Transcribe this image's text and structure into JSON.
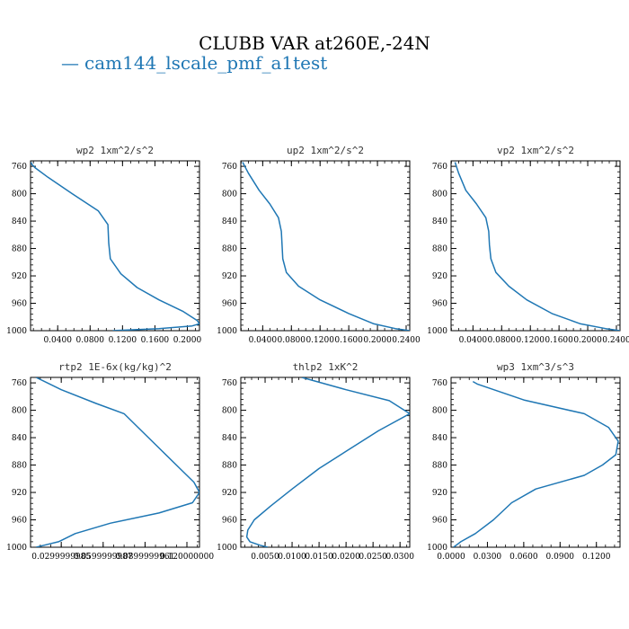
{
  "title": "CLUBB VAR at260E,-24N",
  "legend": {
    "dash": "—",
    "label": "cam144_lscale_pmf_a1test",
    "color": "#1f77b4"
  },
  "chart_data": [
    {
      "type": "line",
      "name": "wp2",
      "title": "wp2   1xm^2/s^2",
      "xlim": [
        0.0065,
        0.215
      ],
      "ylim": [
        1000,
        752
      ],
      "y_inverted": true,
      "xticks": [
        "0.0400",
        "0.0800",
        "0.1200",
        "0.1600",
        "0.2000"
      ],
      "xtick_values": [
        0.04,
        0.08,
        0.12,
        0.16,
        0.2
      ],
      "yticks": [
        "760",
        "800",
        "840",
        "880",
        "920",
        "960",
        "1000"
      ],
      "ytick_values": [
        760,
        800,
        840,
        880,
        920,
        960,
        1000
      ],
      "series": [
        {
          "color": "#1f77b4",
          "x": [
            0.007,
            0.008,
            0.012,
            0.028,
            0.058,
            0.09,
            0.102,
            0.103,
            0.105,
            0.118,
            0.138,
            0.165,
            0.195,
            0.212,
            0.215,
            0.206,
            0.165,
            0.108
          ],
          "y": [
            754,
            757,
            762,
            776,
            800,
            825,
            845,
            872,
            895,
            917,
            937,
            955,
            972,
            985,
            990,
            993,
            997,
            1000
          ]
        }
      ]
    },
    {
      "type": "line",
      "name": "up2",
      "title": "up2   1xm^2/s^2",
      "xlim": [
        0.0095,
        0.245
      ],
      "ylim": [
        1000,
        752
      ],
      "y_inverted": true,
      "xticks": [
        "0.0400",
        "0.0800",
        "0.1200",
        "0.1600",
        "0.2000",
        "0.2400"
      ],
      "xtick_values": [
        0.04,
        0.08,
        0.12,
        0.16,
        0.2,
        0.24
      ],
      "yticks": [
        "760",
        "800",
        "840",
        "880",
        "920",
        "960",
        "1000"
      ],
      "ytick_values": [
        760,
        800,
        840,
        880,
        920,
        960,
        1000
      ],
      "series": [
        {
          "color": "#1f77b4",
          "x": [
            0.012,
            0.02,
            0.035,
            0.05,
            0.062,
            0.066,
            0.067,
            0.068,
            0.073,
            0.09,
            0.12,
            0.16,
            0.195,
            0.225,
            0.245
          ],
          "y": [
            754,
            770,
            795,
            815,
            835,
            855,
            875,
            895,
            915,
            935,
            955,
            975,
            990,
            997,
            1000
          ]
        }
      ]
    },
    {
      "type": "line",
      "name": "vp2",
      "title": "vp2   1xm^2/s^2",
      "xlim": [
        0.0095,
        0.245
      ],
      "ylim": [
        1000,
        752
      ],
      "y_inverted": true,
      "xticks": [
        "0.0400",
        "0.0800",
        "0.1200",
        "0.1600",
        "0.2000",
        "0.2400"
      ],
      "xtick_values": [
        0.04,
        0.08,
        0.12,
        0.16,
        0.2,
        0.24
      ],
      "yticks": [
        "760",
        "800",
        "840",
        "880",
        "920",
        "960",
        "1000"
      ],
      "ytick_values": [
        760,
        800,
        840,
        880,
        920,
        960,
        1000
      ],
      "series": [
        {
          "color": "#1f77b4",
          "x": [
            0.015,
            0.02,
            0.03,
            0.045,
            0.058,
            0.062,
            0.063,
            0.065,
            0.072,
            0.09,
            0.115,
            0.15,
            0.19,
            0.225,
            0.245
          ],
          "y": [
            754,
            770,
            795,
            815,
            835,
            855,
            875,
            895,
            915,
            935,
            955,
            975,
            990,
            997,
            1000
          ]
        }
      ]
    },
    {
      "type": "line",
      "name": "rtp2",
      "title": "rtp2   1E-6x(kg/kg)^2",
      "xlim": [
        0.008,
        0.129
      ],
      "ylim": [
        1000,
        752
      ],
      "y_inverted": true,
      "xticks": [
        "0.0299999985",
        "0.0599999987",
        "0.0899999961",
        "0.120000000"
      ],
      "xtick_values": [
        0.03,
        0.06,
        0.09,
        0.12
      ],
      "yticks": [
        "760",
        "800",
        "840",
        "880",
        "920",
        "960",
        "1000"
      ],
      "ytick_values": [
        760,
        800,
        840,
        880,
        920,
        960,
        1000
      ],
      "series": [
        {
          "color": "#1f77b4",
          "x": [
            0.012,
            0.03,
            0.055,
            0.075,
            0.085,
            0.1,
            0.115,
            0.125,
            0.129,
            0.124,
            0.1,
            0.065,
            0.04,
            0.03,
            0.028,
            0.018,
            0.012
          ],
          "y": [
            752,
            770,
            790,
            805,
            825,
            855,
            885,
            905,
            920,
            935,
            950,
            965,
            980,
            990,
            992,
            997,
            1000
          ]
        }
      ]
    },
    {
      "type": "line",
      "name": "thlp2",
      "title": "thlp2   1xK^2",
      "xlim": [
        0.0005,
        0.0318
      ],
      "ylim": [
        1000,
        752
      ],
      "y_inverted": true,
      "xticks": [
        "0.0050",
        "0.0100",
        "0.0150",
        "0.0200",
        "0.0250",
        "0.0300"
      ],
      "xtick_values": [
        0.005,
        0.01,
        0.015,
        0.02,
        0.025,
        0.03
      ],
      "yticks": [
        "760",
        "800",
        "840",
        "880",
        "920",
        "960",
        "1000"
      ],
      "ytick_values": [
        760,
        800,
        840,
        880,
        920,
        960,
        1000
      ],
      "series": [
        {
          "color": "#1f77b4",
          "x": [
            0.0118,
            0.02,
            0.028,
            0.0318,
            0.026,
            0.02,
            0.015,
            0.01,
            0.006,
            0.003,
            0.0018,
            0.0016,
            0.0022,
            0.004,
            0.0055
          ],
          "y": [
            752,
            770,
            786,
            805,
            830,
            860,
            885,
            915,
            940,
            960,
            975,
            985,
            992,
            997,
            1000
          ]
        }
      ]
    },
    {
      "type": "line",
      "name": "wp3",
      "title": "wp3   1xm^3/s^3",
      "xlim": [
        0.0,
        0.1395
      ],
      "ylim": [
        1000,
        752
      ],
      "y_inverted": true,
      "xticks": [
        "0.0000",
        "0.0300",
        "0.0600",
        "0.0900",
        "0.1200"
      ],
      "xtick_values": [
        0.0,
        0.03,
        0.06,
        0.09,
        0.12
      ],
      "yticks": [
        "760",
        "800",
        "840",
        "880",
        "920",
        "960",
        "1000"
      ],
      "ytick_values": [
        760,
        800,
        840,
        880,
        920,
        960,
        1000
      ],
      "series": [
        {
          "color": "#1f77b4",
          "x": [
            0.018,
            0.022,
            0.06,
            0.11,
            0.13,
            0.138,
            0.136,
            0.125,
            0.11,
            0.07,
            0.05,
            0.035,
            0.02,
            0.008,
            0.002
          ],
          "y": [
            758,
            762,
            785,
            805,
            825,
            845,
            865,
            880,
            895,
            915,
            935,
            960,
            980,
            992,
            1000
          ]
        }
      ]
    }
  ]
}
